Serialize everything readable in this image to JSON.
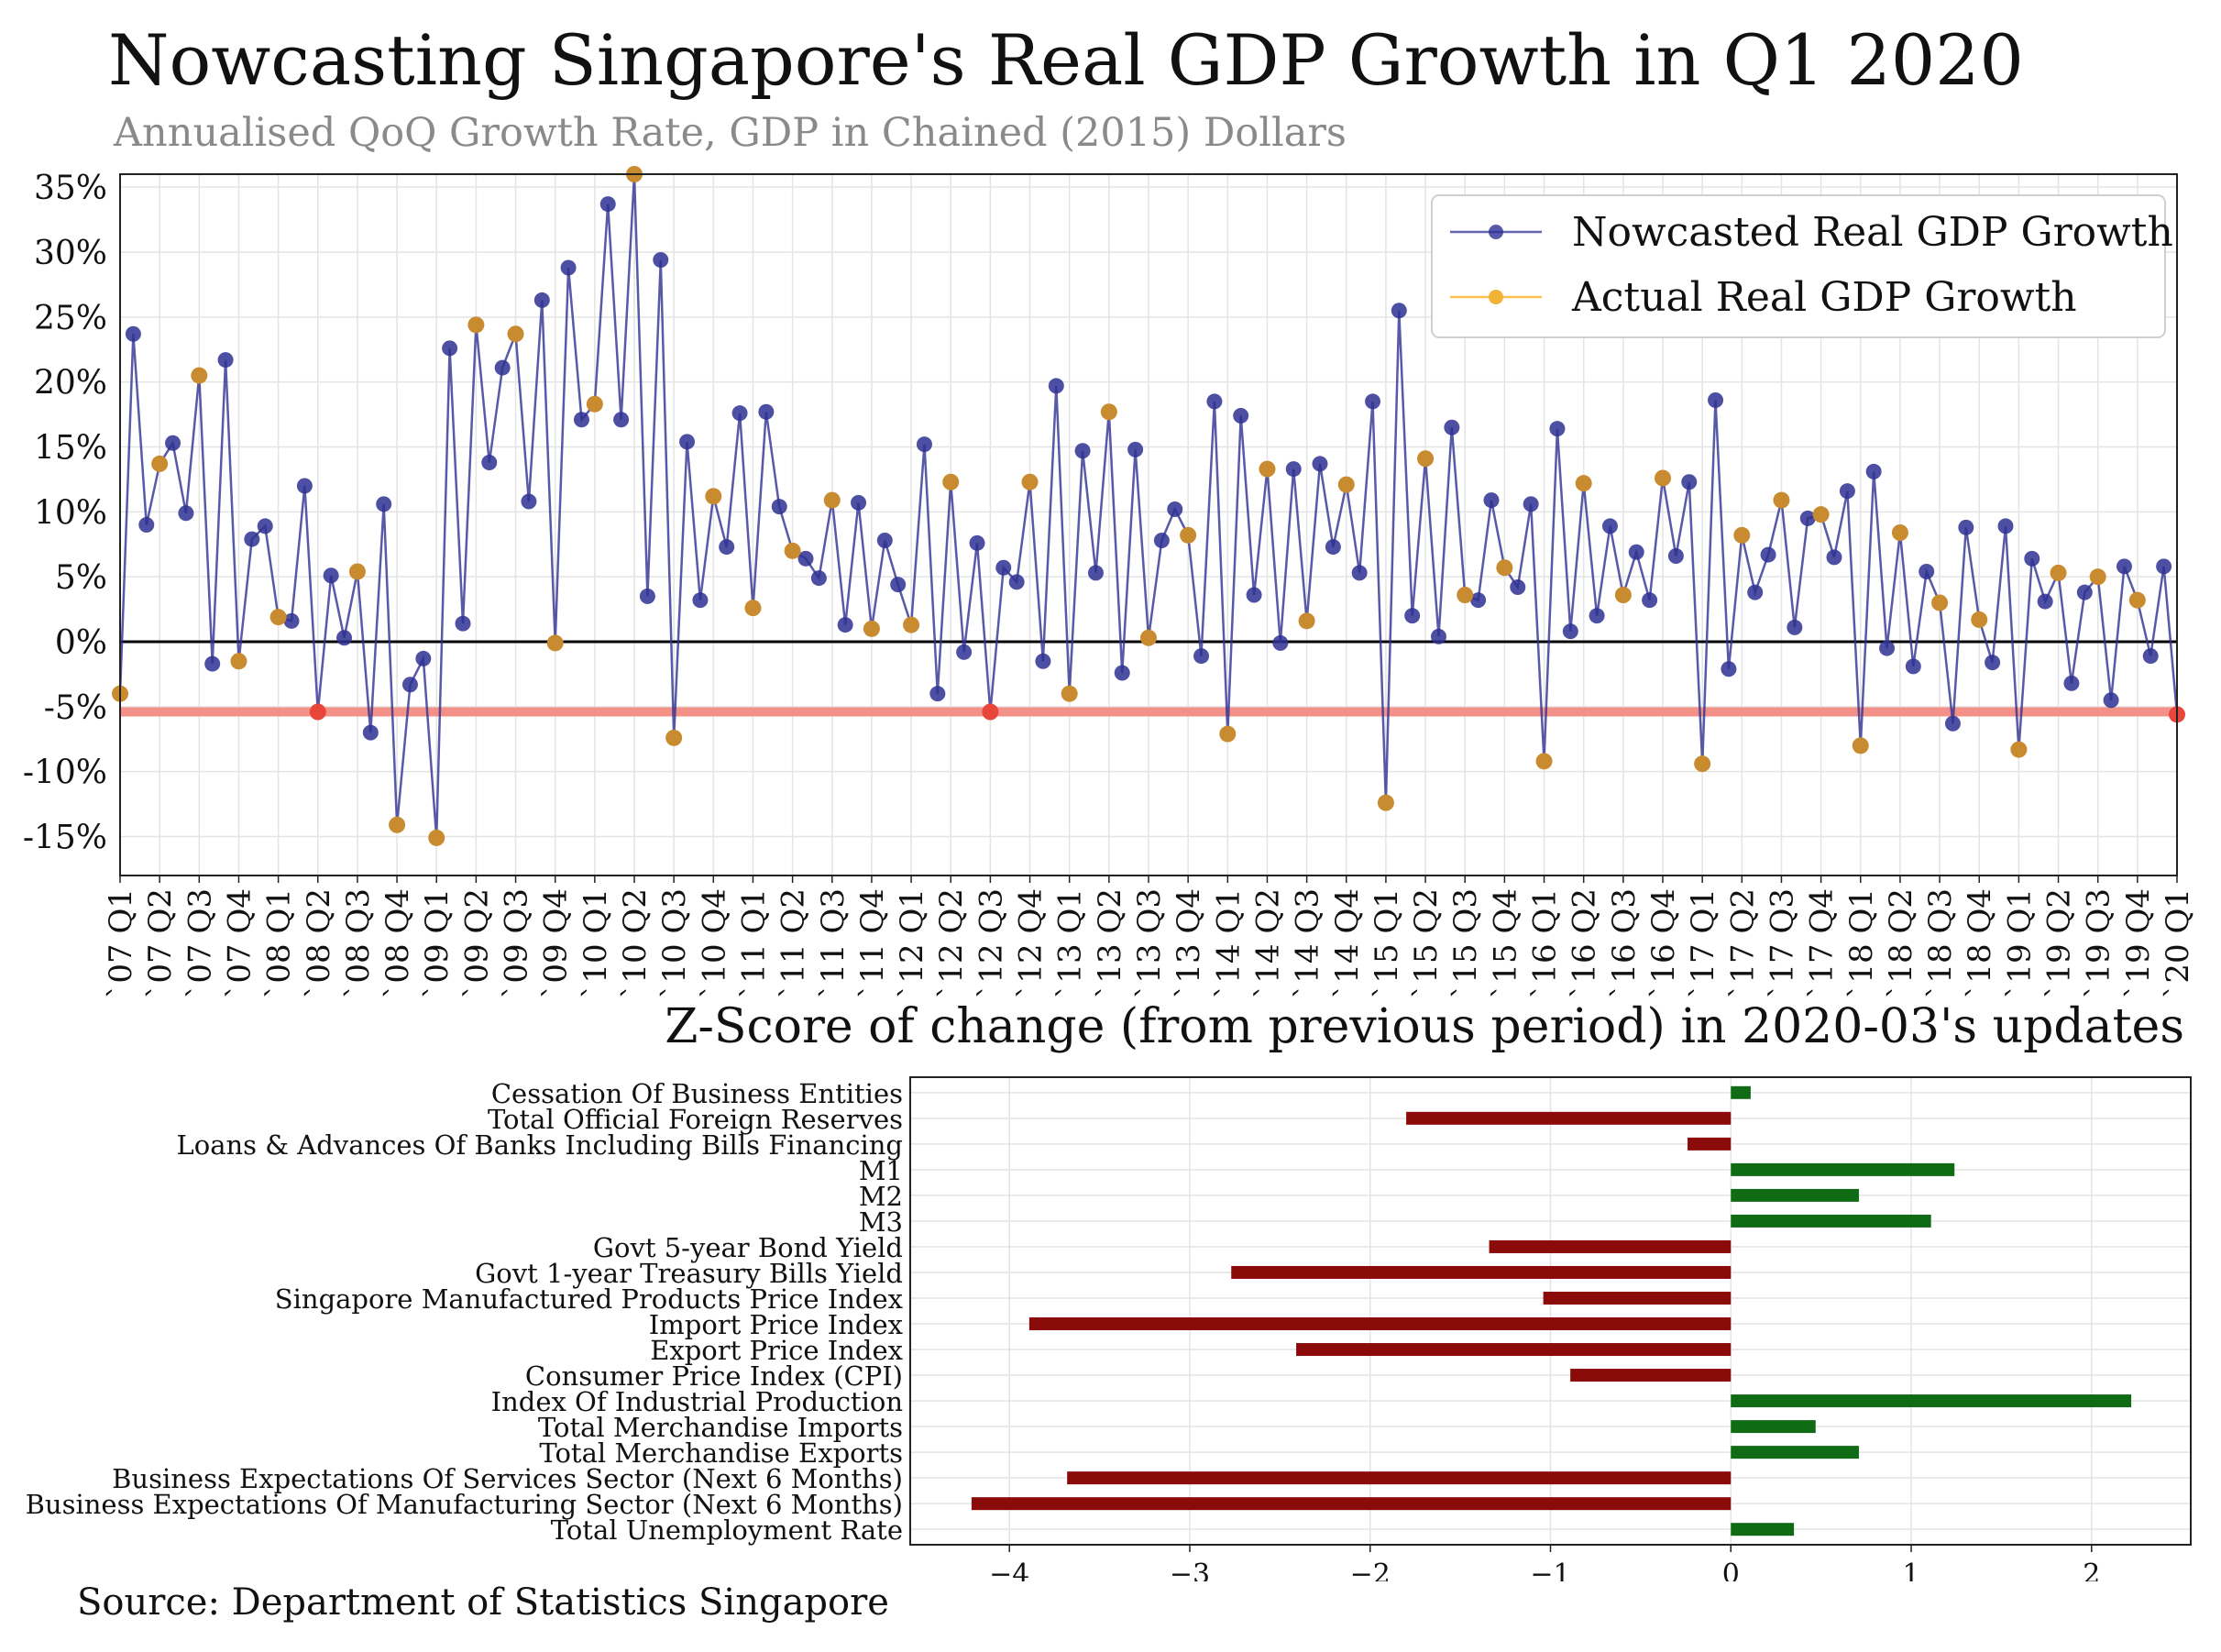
{
  "title": "Nowcasting Singapore's Real GDP Growth in Q1 2020",
  "subtitle": "Annualised QoQ Growth Rate, GDP in Chained (2015) Dollars",
  "source": "Source: Department of Statistics Singapore",
  "colors": {
    "nowcast": "#2e3192",
    "actual": "#c98b2f",
    "reference_line": "#f28b82",
    "highlight_point": "#e8463a",
    "positive_bar": "#0f6b14",
    "negative_bar": "#8b0a0a"
  },
  "chart_data": [
    {
      "type": "line",
      "ylim": [
        -18,
        36
      ],
      "y_ticks": [
        "-15%",
        "-10%",
        "-5%",
        "0%",
        "5%",
        "10%",
        "15%",
        "20%",
        "25%",
        "30%",
        "35%"
      ],
      "y_tick_values": [
        -15,
        -10,
        -5,
        0,
        5,
        10,
        15,
        20,
        25,
        30,
        35
      ],
      "x_tick_labels": [
        "`07 Q1",
        "`07 Q2",
        "`07 Q3",
        "`07 Q4",
        "`08 Q1",
        "`08 Q2",
        "`08 Q3",
        "`08 Q4",
        "`09 Q1",
        "`09 Q2",
        "`09 Q3",
        "`09 Q4",
        "`10 Q1",
        "`10 Q2",
        "`10 Q3",
        "`10 Q4",
        "`11 Q1",
        "`11 Q2",
        "`11 Q3",
        "`11 Q4",
        "`12 Q1",
        "`12 Q2",
        "`12 Q3",
        "`12 Q4",
        "`13 Q1",
        "`13 Q2",
        "`13 Q3",
        "`13 Q4",
        "`14 Q1",
        "`14 Q2",
        "`14 Q3",
        "`14 Q4",
        "`15 Q1",
        "`15 Q2",
        "`15 Q3",
        "`15 Q4",
        "`16 Q1",
        "`16 Q2",
        "`16 Q3",
        "`16 Q4",
        "`17 Q1",
        "`17 Q2",
        "`17 Q3",
        "`17 Q4",
        "`18 Q1",
        "`18 Q2",
        "`18 Q3",
        "`18 Q4",
        "`19 Q1",
        "`19 Q2",
        "`19 Q3",
        "`19 Q4",
        "`20 Q1"
      ],
      "grid": true,
      "legend_position": "top-right",
      "legend": [
        "Nowcasted Real GDP Growth",
        "Actual Real GDP Growth"
      ],
      "zero_line": 0,
      "reference_line_value": -5.4,
      "series": [
        {
          "name": "Nowcasted Real GDP Growth",
          "values": [
            -4,
            23.7,
            9,
            13.7,
            15.3,
            9.9,
            20.5,
            -1.7,
            21.7,
            -1.5,
            7.9,
            8.9,
            1.9,
            1.6,
            12,
            -5.4,
            5.1,
            0.3,
            5.4,
            -7,
            10.6,
            -14.1,
            -3.3,
            -1.3,
            -15.1,
            22.6,
            1.4,
            24.4,
            13.8,
            21.1,
            23.7,
            10.8,
            26.3,
            -0.1,
            28.8,
            17.1,
            18.3,
            33.7,
            17.1,
            36,
            3.5,
            29.4,
            -7.4,
            15.4,
            3.2,
            11.2,
            7.3,
            17.6,
            2.6,
            17.7,
            10.4,
            7,
            6.4,
            4.9,
            10.9,
            1.3,
            10.7,
            1,
            7.8,
            4.4,
            1.3,
            15.2,
            -4,
            12.3,
            -0.8,
            7.6,
            -5.4,
            5.7,
            4.6,
            12.3,
            -1.5,
            19.7,
            -4,
            14.7,
            5.3,
            17.7,
            -2.4,
            14.8,
            0.3,
            7.8,
            10.2,
            8.2,
            -1.1,
            18.5,
            -7.1,
            17.4,
            3.6,
            13.3,
            -0.1,
            13.3,
            1.6,
            13.7,
            7.3,
            12.1,
            5.3,
            18.5,
            -12.4,
            25.5,
            2,
            14.1,
            0.4,
            16.5,
            3.6,
            3.2,
            10.9,
            5.7,
            4.2,
            10.6,
            -9.2,
            16.4,
            0.8,
            12.2,
            2,
            8.9,
            3.6,
            6.9,
            3.2,
            12.6,
            6.6,
            12.3,
            -9.4,
            18.6,
            -2.1,
            8.2,
            3.8,
            6.7,
            10.9,
            1.1,
            9.5,
            9.8,
            6.5,
            11.6,
            -8,
            13.1,
            -0.5,
            8.4,
            -1.9,
            5.4,
            3,
            -6.3,
            8.8,
            1.7,
            -1.6,
            8.9,
            -8.3,
            6.4,
            3.1,
            5.3,
            -3.2,
            3.8,
            5,
            -4.5,
            5.8,
            3.2,
            -1.1,
            5.8,
            -5.6
          ]
        },
        {
          "name": "Actual Real GDP Growth",
          "values": [
            -4,
            13.7,
            20.5,
            -1.5,
            1.9,
            -5.4,
            5.4,
            -14.1,
            -15.1,
            24.4,
            23.7,
            -0.1,
            18.3,
            36,
            -7.4,
            11.2,
            2.6,
            7,
            10.9,
            1,
            1.3,
            12.3,
            -5.4,
            12.3,
            -4,
            17.7,
            0.3,
            8.2,
            -7.1,
            13.3,
            1.6,
            12.1,
            -12.4,
            14.1,
            3.6,
            5.7,
            -9.2,
            12.2,
            3.6,
            12.6,
            -9.4,
            8.2,
            10.9,
            9.8,
            -8,
            8.4,
            3,
            1.7,
            -8.3,
            5.3,
            5,
            3.2,
            -5.6
          ]
        }
      ]
    },
    {
      "type": "bar",
      "orientation": "horizontal",
      "title": "Z-Score of change (from previous period) in 2020-03's updates",
      "xlim": [
        -4.55,
        2.55
      ],
      "x_ticks": [
        "−4",
        "−3",
        "−2",
        "−1",
        "0",
        "1",
        "2"
      ],
      "x_tick_values": [
        -4,
        -3,
        -2,
        -1,
        0,
        1,
        2
      ],
      "grid": true,
      "categories": [
        "Cessation Of Business Entities",
        "Total Official Foreign Reserves",
        "Loans & Advances Of Banks Including Bills Financing",
        "M1",
        "M2",
        "M3",
        "Govt 5-year Bond Yield",
        "Govt 1-year Treasury Bills Yield",
        "Singapore Manufactured Products Price Index",
        "Import Price Index",
        "Export Price Index",
        "Consumer Price Index (CPI)",
        "Index Of Industrial Production",
        "Total Merchandise Imports",
        "Total Merchandise Exports",
        "Business Expectations Of Services Sector (Next 6 Months)",
        "Business Expectations Of Manufacturing Sector (Next 6 Months)",
        "Total Unemployment Rate"
      ],
      "values": [
        0.11,
        -1.8,
        -0.24,
        1.24,
        0.71,
        1.11,
        -1.34,
        -2.77,
        -1.04,
        -3.89,
        -2.41,
        -0.89,
        2.22,
        0.47,
        0.71,
        -3.68,
        -4.21,
        0.35
      ]
    }
  ]
}
